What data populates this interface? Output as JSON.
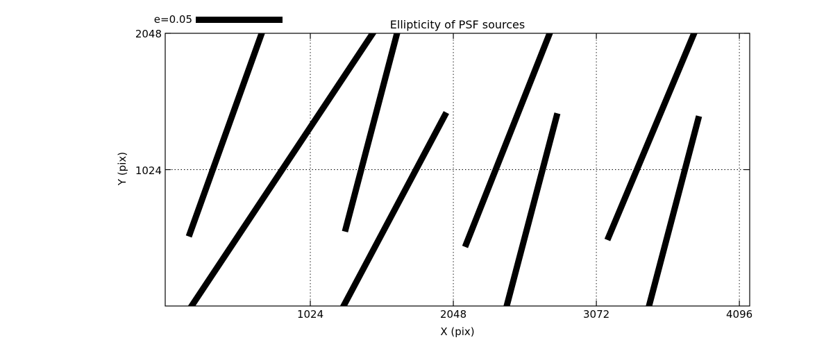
{
  "plot": {
    "title": "Ellipticity of PSF sources",
    "xlabel": "X (pix)",
    "ylabel": "Y (pix)",
    "key_label": "e=0.05"
  },
  "colors": {
    "foreground": "#000000",
    "background": "#ffffff"
  },
  "chart_data": {
    "type": "quiver",
    "title": "Ellipticity of PSF sources",
    "xlabel": "X (pix)",
    "ylabel": "Y (pix)",
    "xlim": [
      -15,
      4170
    ],
    "ylim": [
      0,
      2048
    ],
    "xticks": [
      1024,
      2048,
      3072,
      4096
    ],
    "yticks": [
      1024,
      2048
    ],
    "grid": "dotted",
    "legend_position": "top-left-above-axes",
    "key": {
      "label": "e=0.05",
      "value": 0.05,
      "length_data_units": 622
    },
    "segments": [
      {
        "x1": 154,
        "y1": 522,
        "x2": 676,
        "y2": 2048,
        "clip_start": false,
        "clip_end": true
      },
      {
        "x1": 174,
        "y1": 0,
        "x2": 1471,
        "y2": 2048,
        "clip_start": true,
        "clip_end": true
      },
      {
        "x1": 1272,
        "y1": 559,
        "x2": 1645,
        "y2": 2048,
        "clip_start": false,
        "clip_end": true
      },
      {
        "x1": 1262,
        "y1": 0,
        "x2": 1998,
        "y2": 1453,
        "clip_start": true,
        "clip_end": false
      },
      {
        "x1": 2132,
        "y1": 444,
        "x2": 2738,
        "y2": 2048,
        "clip_start": false,
        "clip_end": true
      },
      {
        "x1": 2430,
        "y1": 0,
        "x2": 2793,
        "y2": 1447,
        "clip_start": true,
        "clip_end": false
      },
      {
        "x1": 3151,
        "y1": 496,
        "x2": 3772,
        "y2": 2048,
        "clip_start": false,
        "clip_end": true
      },
      {
        "x1": 3449,
        "y1": 0,
        "x2": 3807,
        "y2": 1426,
        "clip_start": true,
        "clip_end": false
      }
    ]
  }
}
